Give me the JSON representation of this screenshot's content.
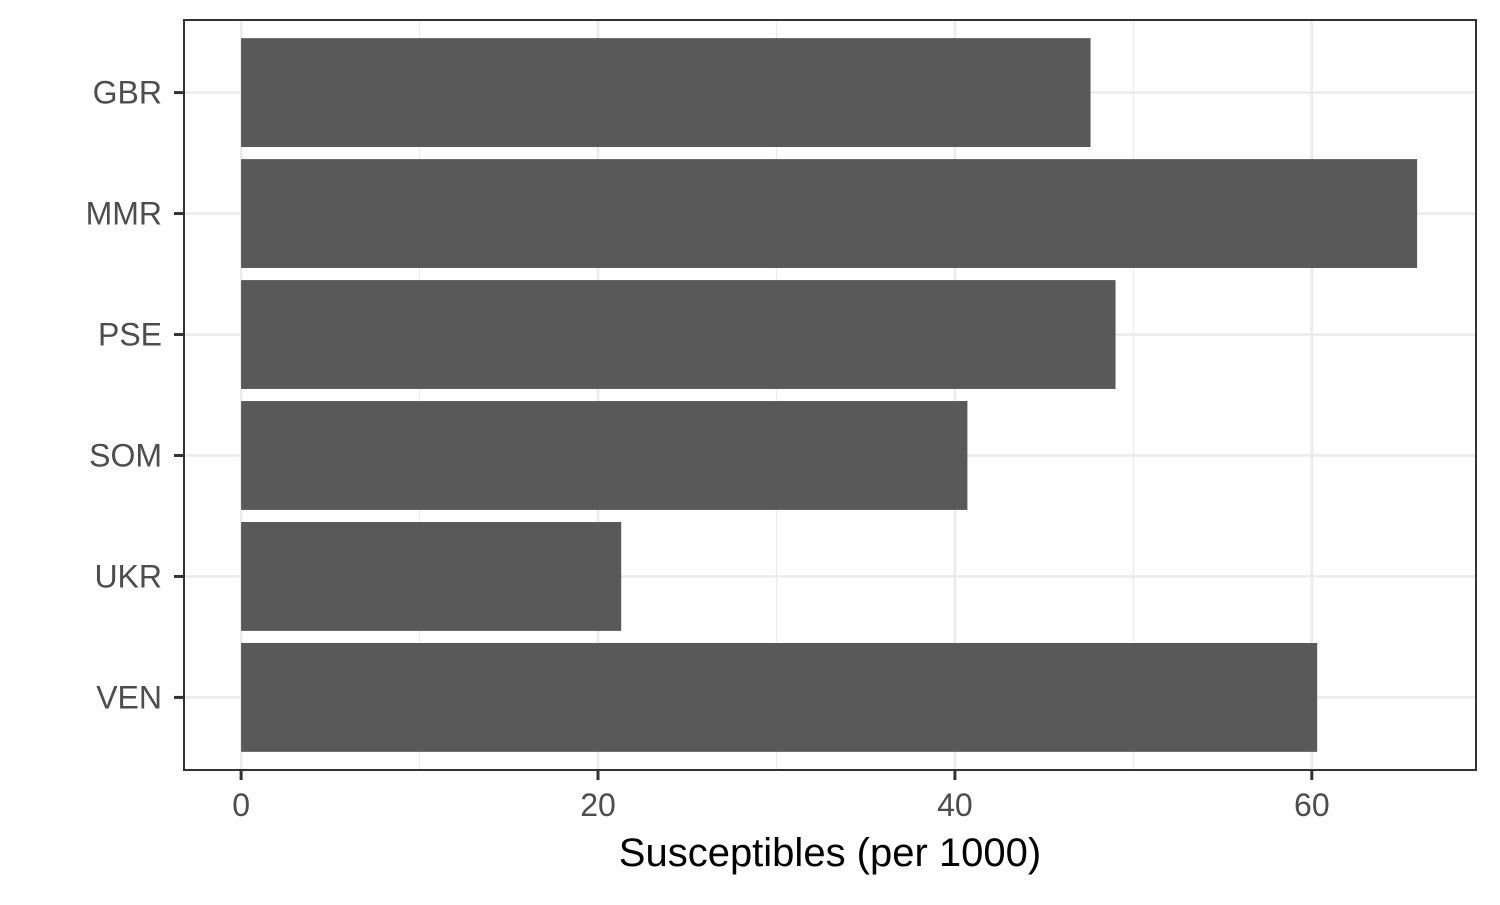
{
  "chart_data": {
    "type": "bar",
    "orientation": "horizontal",
    "categories": [
      "GBR",
      "MMR",
      "PSE",
      "SOM",
      "UKR",
      "VEN"
    ],
    "values": [
      47.6,
      65.9,
      49.0,
      40.7,
      21.3,
      60.3
    ],
    "title": "",
    "xlabel": "Susceptibles (per 1000)",
    "ylabel": "",
    "xlim": [
      -3.2,
      69.2
    ],
    "x_ticks": [
      0,
      20,
      40,
      60
    ],
    "x_tick_labels": [
      "0",
      "20",
      "40",
      "60"
    ],
    "grid": true,
    "legend": "none",
    "colors": {
      "bar": "#595959",
      "grid": "#ebebeb",
      "panel_border": "#333333",
      "background": "#ffffff"
    }
  }
}
